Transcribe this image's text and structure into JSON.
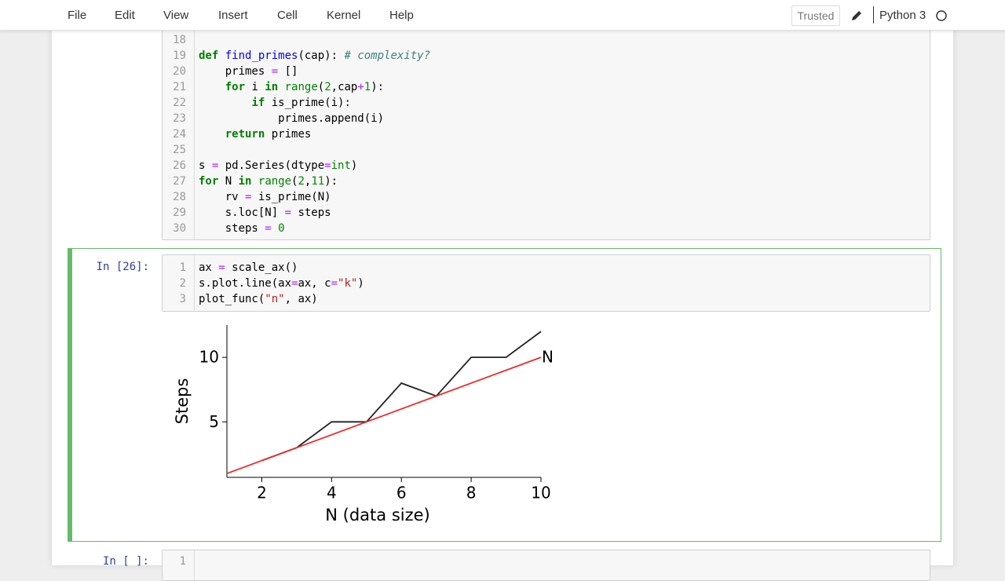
{
  "menu": [
    "File",
    "Edit",
    "View",
    "Insert",
    "Cell",
    "Kernel",
    "Help"
  ],
  "trusted": "Trusted",
  "kernel": "Python 3",
  "cells": [
    {
      "lines": [
        {
          "n": 18,
          "tokens": []
        },
        {
          "n": 19,
          "tokens": [
            {
              "t": "def",
              "s": "kw"
            },
            " ",
            {
              "t": "find_primes",
              "s": "fn"
            },
            "(cap): ",
            {
              "t": "# complexity?",
              "s": "cm"
            }
          ]
        },
        {
          "n": 20,
          "tokens": [
            "    primes ",
            {
              "t": "=",
              "s": "op"
            },
            " []"
          ]
        },
        {
          "n": 21,
          "tokens": [
            "    ",
            {
              "t": "for",
              "s": "kw"
            },
            " i ",
            {
              "t": "in",
              "s": "kw"
            },
            " ",
            {
              "t": "range",
              "s": "bi"
            },
            "(",
            {
              "t": "2",
              "s": "num"
            },
            ",cap",
            {
              "t": "+",
              "s": "op"
            },
            {
              "t": "1",
              "s": "num"
            },
            "):"
          ]
        },
        {
          "n": 22,
          "tokens": [
            "        ",
            {
              "t": "if",
              "s": "kw"
            },
            " is_prime(i):"
          ]
        },
        {
          "n": 23,
          "tokens": [
            "            primes.append(i)"
          ]
        },
        {
          "n": 24,
          "tokens": [
            "    ",
            {
              "t": "return",
              "s": "kw"
            },
            " primes"
          ]
        },
        {
          "n": 25,
          "tokens": []
        },
        {
          "n": 26,
          "tokens": [
            "s ",
            {
              "t": "=",
              "s": "op"
            },
            " pd.Series(dtype",
            {
              "t": "=",
              "s": "op"
            },
            {
              "t": "int",
              "s": "bi"
            },
            ")"
          ]
        },
        {
          "n": 27,
          "tokens": [
            {
              "t": "for",
              "s": "kw"
            },
            " N ",
            {
              "t": "in",
              "s": "kw"
            },
            " ",
            {
              "t": "range",
              "s": "bi"
            },
            "(",
            {
              "t": "2",
              "s": "num"
            },
            ",",
            {
              "t": "11",
              "s": "num"
            },
            "):"
          ]
        },
        {
          "n": 28,
          "tokens": [
            "    rv ",
            {
              "t": "=",
              "s": "op"
            },
            " is_prime(N)"
          ]
        },
        {
          "n": 29,
          "tokens": [
            "    s.loc[N] ",
            {
              "t": "=",
              "s": "op"
            },
            " steps"
          ]
        },
        {
          "n": 30,
          "tokens": [
            "    steps ",
            {
              "t": "=",
              "s": "op"
            },
            " ",
            {
              "t": "0",
              "s": "num"
            }
          ]
        }
      ]
    },
    {
      "prompt": "In [26]:",
      "lines": [
        {
          "n": 1,
          "tokens": [
            "ax ",
            {
              "t": "=",
              "s": "op"
            },
            " scale_ax()"
          ]
        },
        {
          "n": 2,
          "tokens": [
            "s.plot.line(ax",
            {
              "t": "=",
              "s": "op"
            },
            "ax, c",
            {
              "t": "=",
              "s": "op"
            },
            {
              "t": "\"k\"",
              "s": "str"
            },
            ")"
          ]
        },
        {
          "n": 3,
          "tokens": [
            "plot_func(",
            {
              "t": "\"n\"",
              "s": "str"
            },
            ", ax)"
          ]
        }
      ]
    },
    {
      "prompt": "In [ ]:",
      "lines": [
        {
          "n": 1,
          "tokens": []
        }
      ]
    }
  ],
  "chart_data": {
    "type": "line",
    "series": [
      {
        "color": "#222222",
        "x": [
          2,
          3,
          4,
          5,
          6,
          7,
          8,
          9,
          10
        ],
        "values": [
          2,
          3,
          5,
          5,
          8,
          7,
          10,
          10,
          12
        ]
      },
      {
        "color": "#ee2a2a",
        "x": [
          1,
          10
        ],
        "values": [
          1,
          10
        ]
      }
    ],
    "annotation": "N",
    "xlabel": "N (data size)",
    "ylabel": "Steps",
    "xlim": [
      1,
      10
    ],
    "ylim": [
      0.7,
      12.5
    ],
    "xticks": [
      2,
      4,
      6,
      8,
      10
    ],
    "yticks": [
      5,
      10
    ]
  }
}
